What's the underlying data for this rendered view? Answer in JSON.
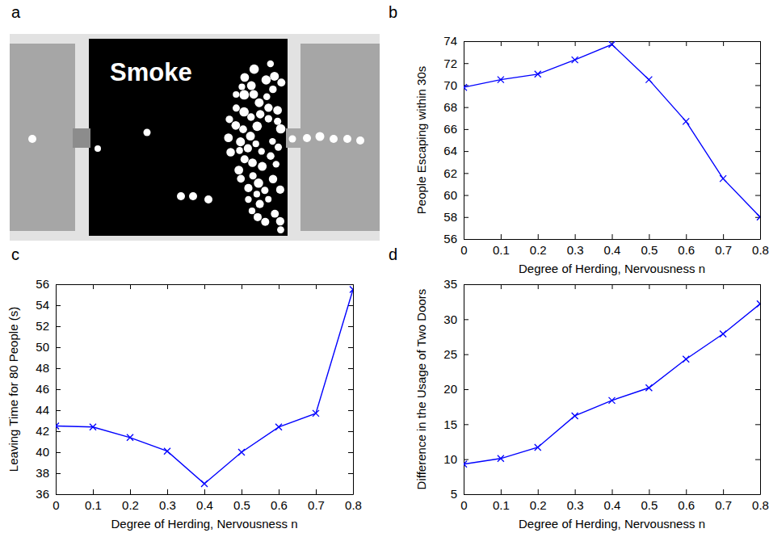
{
  "chart_data": [
    {
      "type": "diagram",
      "panel": "a",
      "label": "Smoke"
    },
    {
      "type": "line",
      "panel": "b",
      "x_label": "Degree of Herding, Nervousness n",
      "y_label": "People Escaping within 30s",
      "x": [
        0,
        0.1,
        0.2,
        0.3,
        0.4,
        0.5,
        0.6,
        0.7,
        0.8
      ],
      "values": [
        69.8,
        70.5,
        71.0,
        72.3,
        73.7,
        70.5,
        66.7,
        61.5,
        58.0
      ],
      "color": "#0000ff",
      "marker": "x",
      "line_style": "solid",
      "xlim": [
        0,
        0.8
      ],
      "xticks": [
        0,
        0.1,
        0.2,
        0.3,
        0.4,
        0.5,
        0.6,
        0.7,
        0.8
      ],
      "ylim": [
        56,
        74
      ],
      "yticks": [
        56,
        58,
        60,
        62,
        64,
        66,
        68,
        70,
        72,
        74
      ]
    },
    {
      "type": "line",
      "panel": "c",
      "x_label": "Degree of Herding, Nervousness n",
      "y_label": "Leaving Time for 80 People (s)",
      "x": [
        0,
        0.1,
        0.2,
        0.3,
        0.4,
        0.5,
        0.6,
        0.7,
        0.8
      ],
      "values": [
        42.5,
        42.4,
        41.4,
        40.1,
        37.0,
        40.0,
        42.4,
        43.7,
        55.5
      ],
      "color": "#0000ff",
      "marker": "x",
      "line_style": "solid",
      "xlim": [
        0,
        0.8
      ],
      "xticks": [
        0,
        0.1,
        0.2,
        0.3,
        0.4,
        0.5,
        0.6,
        0.7,
        0.8
      ],
      "ylim": [
        36,
        56
      ],
      "yticks": [
        36,
        38,
        40,
        42,
        44,
        46,
        48,
        50,
        52,
        54,
        56
      ]
    },
    {
      "type": "line",
      "panel": "d",
      "x_label": "Degree of Herding, Nervousness n",
      "y_label": "Difference in the Usage of Two Doors",
      "x": [
        0,
        0.1,
        0.2,
        0.3,
        0.4,
        0.5,
        0.6,
        0.7,
        0.8
      ],
      "values": [
        9.3,
        10.1,
        11.7,
        16.2,
        18.4,
        20.2,
        24.3,
        27.9,
        32.2
      ],
      "color": "#0000ff",
      "marker": "x",
      "line_style": "solid",
      "xlim": [
        0,
        0.8
      ],
      "xticks": [
        0,
        0.1,
        0.2,
        0.3,
        0.4,
        0.5,
        0.6,
        0.7,
        0.8
      ],
      "ylim": [
        5,
        35
      ],
      "yticks": [
        5,
        10,
        15,
        20,
        25,
        30,
        35
      ]
    }
  ]
}
